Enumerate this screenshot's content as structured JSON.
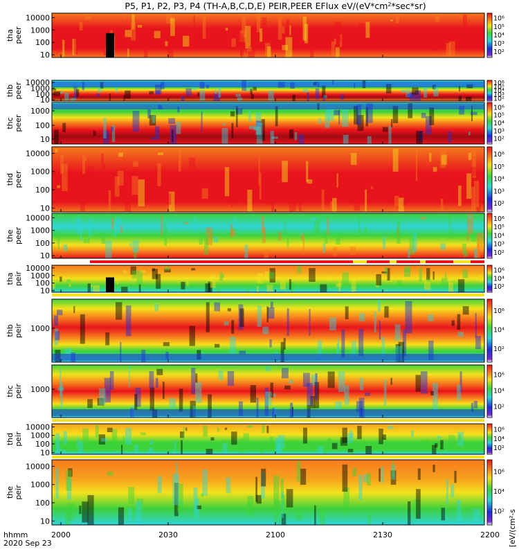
{
  "chart_data": {
    "type": "heatmap",
    "title": "P5, P1, P2, P3, P4 (TH-A,B,C,D,E) PEIR,PEER EFlux eV/(eV*cm²*sec*sr)",
    "title_parts": {
      "before_sup": "P5, P1, P2, P3, P4 (TH-A,B,C,D,E) PEIR,PEER EFlux eV/(eV*cm",
      "sup": "2",
      "after_sup": "*sec*sr)"
    },
    "x_axis": {
      "label_line1": "hhmm",
      "label_line2": "2020 Sep 23",
      "ticks": [
        "2000",
        "2030",
        "2100",
        "2130",
        "2200"
      ]
    },
    "colorbar_label": "[eV/(cm²-s",
    "colorbar_ticks_upper": [
      "10⁶",
      "10⁵",
      "10⁴",
      "10³",
      "10²"
    ],
    "colorbar_ticks_lower": [
      "10⁶",
      "10⁴",
      "10²"
    ],
    "panels": [
      {
        "id": "tha-peer",
        "label": [
          "tha",
          "peer"
        ],
        "yticks": [
          "10000",
          "1000",
          "100",
          "10"
        ]
      },
      {
        "id": "thb-peer",
        "label": [
          "thb",
          "peer"
        ],
        "yticks": [
          "10000",
          "1000",
          "100",
          "10"
        ]
      },
      {
        "id": "thc-peer",
        "label": [
          "thc",
          "peer"
        ],
        "yticks": [
          "1000",
          "100",
          "10"
        ]
      },
      {
        "id": "thd-peer",
        "label": [
          "thd",
          "peer"
        ],
        "yticks": [
          "10000",
          "1000",
          "100",
          "10"
        ]
      },
      {
        "id": "the-peer",
        "label": [
          "the",
          "peer"
        ],
        "yticks": [
          "10000",
          "1000",
          "100",
          "10"
        ]
      },
      {
        "id": "tha-peir",
        "label": [
          "tha",
          "peir"
        ],
        "yticks": [
          "10000",
          "1000",
          "100",
          "10"
        ]
      },
      {
        "id": "thb-peir",
        "label": [
          "thb",
          "peir"
        ],
        "yticks": [
          "1000"
        ]
      },
      {
        "id": "thc-peir",
        "label": [
          "thc",
          "peir"
        ],
        "yticks": [
          "1000"
        ]
      },
      {
        "id": "thd-peir",
        "label": [
          "thd",
          "peir"
        ],
        "yticks": [
          "10000",
          "1000",
          "100",
          "10"
        ]
      },
      {
        "id": "the-peir",
        "label": [
          "the",
          "peir"
        ],
        "yticks": [
          "10000",
          "1000",
          "100",
          "10"
        ]
      }
    ],
    "colors": {
      "red": "#e8141c",
      "orange": "#f77a1e",
      "yellow": "#f5e11c",
      "green": "#3ed23a",
      "cyan": "#2fd5d8",
      "blue": "#1a2fd6",
      "darkred": "#a10a14",
      "black": "#000000"
    }
  }
}
